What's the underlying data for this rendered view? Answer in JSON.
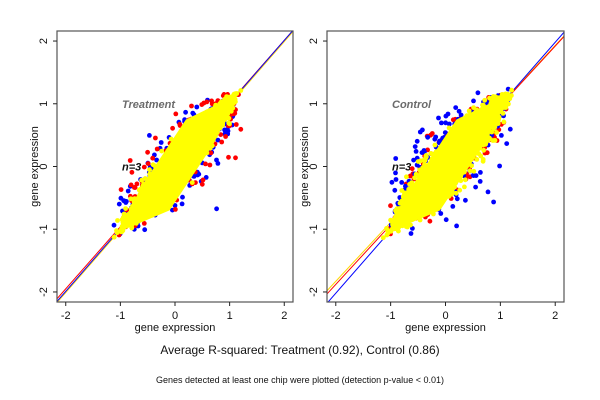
{
  "chart_data": [
    {
      "type": "scatter",
      "panel": "left",
      "title": "Treatment",
      "annotation": "n=3",
      "xlabel": "gene expression",
      "ylabel": "gene expression",
      "xlim": [
        -2.16,
        2.16
      ],
      "ylim": [
        -2.16,
        2.16
      ],
      "xticks": [
        -2,
        -1,
        0,
        1,
        2
      ],
      "yticks": [
        -2,
        -1,
        0,
        1,
        2
      ],
      "grid": false,
      "series": [
        {
          "name": "replicate-blue",
          "color": "#0000ff",
          "spread": 0.24,
          "cloud": [
            -1.1,
            1.2
          ]
        },
        {
          "name": "replicate-red",
          "color": "#ff0000",
          "spread": 0.26,
          "cloud": [
            -1.1,
            1.2
          ]
        },
        {
          "name": "replicate-yellow",
          "color": "#ffff00",
          "spread": 0.16,
          "cloud": [
            -1.1,
            1.2
          ]
        }
      ],
      "fit_lines": [
        {
          "color": "#ff0000",
          "slope": 0.99,
          "intercept": 0.03
        },
        {
          "color": "#ffd700",
          "slope": 1.0,
          "intercept": -0.01
        },
        {
          "color": "#0000ff",
          "slope": 1.0,
          "intercept": 0.01
        }
      ]
    },
    {
      "type": "scatter",
      "panel": "right",
      "title": "Control",
      "annotation": "n=3",
      "xlabel": "gene expression",
      "ylabel": "gene expression",
      "xlim": [
        -2.16,
        2.16
      ],
      "ylim": [
        -2.16,
        2.16
      ],
      "xticks": [
        -2,
        -1,
        0,
        1,
        2
      ],
      "yticks": [
        -2,
        -1,
        0,
        1,
        2
      ],
      "grid": false,
      "series": [
        {
          "name": "replicate-red",
          "color": "#ff0000",
          "spread": 0.22,
          "cloud": [
            -1.1,
            1.25
          ]
        },
        {
          "name": "replicate-blue",
          "color": "#0000ff",
          "spread": 0.28,
          "cloud": [
            -1.1,
            1.25
          ]
        },
        {
          "name": "replicate-yellow",
          "color": "#ffff00",
          "spread": 0.22,
          "cloud": [
            -1.1,
            1.25
          ]
        }
      ],
      "fit_lines": [
        {
          "color": "#ffd700",
          "slope": 0.94,
          "intercept": 0.05
        },
        {
          "color": "#ff0000",
          "slope": 0.95,
          "intercept": 0.02
        },
        {
          "color": "#0000ff",
          "slope": 1.0,
          "intercept": -0.02
        }
      ]
    }
  ],
  "footer": {
    "summary": "Average R-squared: Treatment (0.92), Control (0.86)",
    "note": "Genes detected at least one chip were plotted (detection p-value < 0.01)"
  }
}
